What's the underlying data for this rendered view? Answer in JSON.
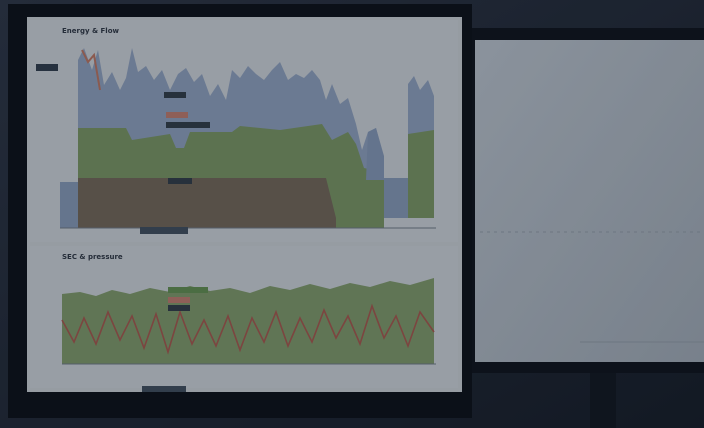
{
  "top_chart": {
    "title": "Energy & Flow"
  },
  "bottom_chart": {
    "title": "SEC & pressure"
  }
}
